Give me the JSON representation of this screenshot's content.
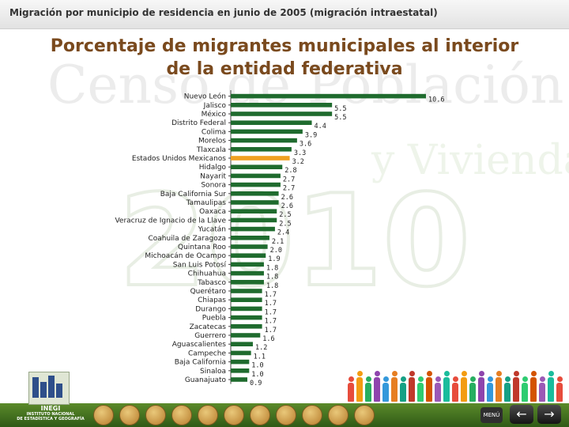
{
  "header": {
    "text": "Migración por municipio de residencia en junio de 2005 (migración intraestatal)"
  },
  "title": {
    "line1": "Porcentaje de migrantes municipales al interior",
    "line2": "de la entidad federativa"
  },
  "watermark": {
    "line1": "Censo de Población",
    "line2": "y Vivienda",
    "line3": "2010"
  },
  "logo": {
    "name": "INEGI",
    "line1": "INSTITUTO NACIONAL",
    "line2": "DE ESTADÍSTICA Y GEOGRAFÍA"
  },
  "nav": {
    "menu_label": "MENÚ",
    "prev_icon": "←",
    "next_icon": "→"
  },
  "colors": {
    "bar": "#1f6b2e",
    "highlight": "#f0a020",
    "title": "#7a4a1e",
    "footer": "#3d6b1f"
  },
  "chart_data": {
    "type": "bar",
    "orientation": "horizontal",
    "categories": [
      "Nuevo León",
      "Jalisco",
      "México",
      "Distrito Federal",
      "Colima",
      "Morelos",
      "Tlaxcala",
      "Estados Unidos Mexicanos",
      "Hidalgo",
      "Nayarit",
      "Sonora",
      "Baja California Sur",
      "Tamaulipas",
      "Oaxaca",
      "Veracruz de Ignacio de la Llave",
      "Yucatán",
      "Coahuila de Zaragoza",
      "Quintana Roo",
      "Michoacán de Ocampo",
      "San Luis Potosí",
      "Chihuahua",
      "Tabasco",
      "Querétaro",
      "Chiapas",
      "Durango",
      "Puebla",
      "Zacatecas",
      "Guerrero",
      "Aguascalientes",
      "Campeche",
      "Baja California",
      "Sinaloa",
      "Guanajuato"
    ],
    "values": [
      10.6,
      5.5,
      5.5,
      4.4,
      3.9,
      3.6,
      3.3,
      3.2,
      2.8,
      2.7,
      2.7,
      2.6,
      2.6,
      2.5,
      2.5,
      2.4,
      2.1,
      2.0,
      1.9,
      1.8,
      1.8,
      1.8,
      1.7,
      1.7,
      1.7,
      1.7,
      1.7,
      1.6,
      1.2,
      1.1,
      1.0,
      1.0,
      0.9
    ],
    "highlight_index": 7,
    "xlim": [
      0,
      11
    ],
    "grid": false,
    "legend": "none"
  }
}
